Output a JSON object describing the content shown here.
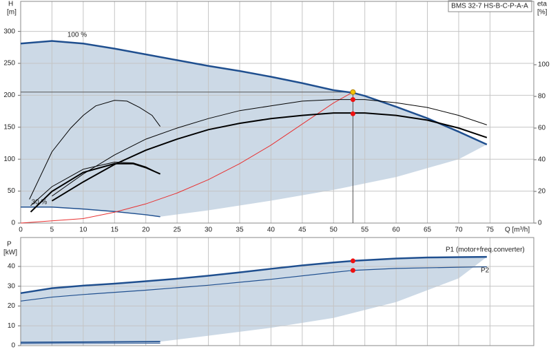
{
  "chart_data": [
    {
      "type": "line",
      "title": "BMS 32-7 HS-B-C-P-A-A",
      "xlabel": "Q [m³/h]",
      "ylabel": "H",
      "yunit": "[m]",
      "y2label": "eta",
      "y2unit": "[%]",
      "xlim": [
        0,
        82
      ],
      "xticks": [
        0,
        5,
        10,
        15,
        20,
        25,
        30,
        35,
        40,
        45,
        50,
        55,
        60,
        65,
        70,
        75
      ],
      "ylim": [
        0,
        347
      ],
      "yticks": [
        0,
        50,
        100,
        150,
        200,
        250,
        300
      ],
      "y2lim": [
        0,
        140
      ],
      "y2ticks": [
        0,
        20,
        40,
        60,
        80,
        100
      ],
      "grid": true,
      "shade": {
        "color": "#ccd9e6",
        "x": [
          74.5,
          70,
          60,
          50,
          40,
          30,
          22.3
        ],
        "values": [
          123,
          100,
          72,
          52,
          35,
          20,
          10
        ]
      },
      "series": [
        {
          "name": "100 %",
          "color": "#1f4f8f",
          "width": 2.5,
          "x": [
            0,
            5,
            10,
            15,
            20,
            25,
            30,
            35,
            40,
            45,
            50,
            53.1,
            55,
            60,
            65,
            70,
            74.5
          ],
          "values": [
            281,
            285,
            281,
            273,
            264,
            255,
            246,
            238,
            229,
            219,
            208,
            204,
            199,
            182,
            164,
            143,
            123
          ]
        },
        {
          "name": "30 %",
          "color": "#1f4f8f",
          "width": 1.5,
          "x": [
            0,
            5,
            10,
            15,
            20,
            22.3
          ],
          "values": [
            25,
            25,
            22,
            18,
            13,
            10
          ]
        },
        {
          "color": "#e83030",
          "width": 1,
          "x": [
            0,
            10,
            15,
            20,
            25,
            30,
            35,
            40,
            45,
            50,
            53.1
          ],
          "values": [
            0,
            7,
            17,
            30,
            47,
            68,
            93,
            122,
            155,
            188,
            205
          ]
        },
        {
          "color": "#000000",
          "width": 2,
          "axis": "y2",
          "x": [
            5,
            10,
            15,
            20,
            25,
            30,
            35,
            40,
            45,
            50,
            55,
            60,
            65,
            70,
            74.5
          ],
          "values": [
            14,
            26,
            37,
            46,
            53,
            59,
            63,
            66,
            68,
            69.5,
            69.5,
            68,
            65,
            60,
            54
          ]
        },
        {
          "color": "#000000",
          "width": 1,
          "axis": "y2",
          "x": [
            5,
            10,
            15,
            20,
            25,
            30,
            35,
            40,
            45,
            50,
            55,
            60,
            65,
            70,
            74.5
          ],
          "values": [
            17,
            31,
            43,
            53,
            60,
            66,
            71,
            74,
            77,
            78,
            78,
            76,
            73,
            68,
            62
          ]
        },
        {
          "color": "#000000",
          "width": 2,
          "axis": "y2",
          "x": [
            1.6,
            5,
            10,
            15,
            18,
            20,
            22.3
          ],
          "values": [
            7,
            20,
            32,
            37.5,
            37.5,
            35,
            31
          ]
        },
        {
          "color": "#000000",
          "width": 1,
          "axis": "y2",
          "x": [
            1.6,
            5,
            10,
            15,
            18,
            20,
            22.3
          ],
          "values": [
            11,
            23,
            34,
            38.5,
            38,
            35.5,
            31
          ]
        },
        {
          "color": "#000000",
          "width": 1,
          "axis": "y2",
          "x": [
            1.4,
            5,
            8,
            10,
            12,
            15,
            17,
            19,
            21,
            22.3
          ],
          "values": [
            15,
            45,
            60,
            68,
            74,
            77.5,
            77,
            73,
            68,
            61
          ]
        }
      ],
      "points": [
        {
          "x": 53.1,
          "y": 205,
          "color": "#f5c400"
        },
        {
          "x": 53.1,
          "y": 78,
          "axis": "y2",
          "color": "#ee1111"
        },
        {
          "x": 53.1,
          "y": 69,
          "axis": "y2",
          "color": "#ee1111"
        }
      ]
    },
    {
      "type": "line",
      "ylabel": "P",
      "yunit": "[kW]",
      "xlim": [
        0,
        82
      ],
      "xticks": [
        0,
        5,
        10,
        15,
        20,
        25,
        30,
        35,
        40,
        45,
        50,
        55,
        60,
        65,
        70,
        75
      ],
      "ylim": [
        0,
        54.6
      ],
      "yticks": [
        0,
        10,
        20,
        30,
        40
      ],
      "grid": true,
      "shade": {
        "color": "#ccd9e6",
        "x": [
          74.5,
          70,
          60,
          50,
          40,
          30,
          22.3
        ],
        "values": [
          44.8,
          34,
          22,
          14,
          9,
          5,
          2
        ]
      },
      "series": [
        {
          "name": "P1 (motor+freq.converter)",
          "color": "#1f4f8f",
          "width": 2.5,
          "x": [
            0,
            5,
            10,
            15,
            20,
            25,
            30,
            35,
            40,
            45,
            50,
            53.1,
            60,
            65,
            70,
            74.5
          ],
          "values": [
            26.5,
            29,
            30.3,
            31.3,
            32.5,
            33.8,
            35.3,
            37,
            38.8,
            40.5,
            42,
            42.8,
            44,
            44.5,
            44.7,
            44.8
          ]
        },
        {
          "color": "#1f4f8f",
          "width": 2,
          "x": [
            0,
            22.3
          ],
          "values": [
            1.6,
            2
          ]
        },
        {
          "name": "P2",
          "color": "#1f4f8f",
          "width": 1.2,
          "x": [
            0,
            5,
            10,
            20,
            30,
            40,
            50,
            53.1,
            60,
            70,
            74.5
          ],
          "values": [
            22.5,
            24.5,
            25.8,
            28,
            30.5,
            33.5,
            37,
            38,
            39,
            39.6,
            39.8
          ]
        },
        {
          "color": "#1f4f8f",
          "width": 1,
          "x": [
            0,
            22.3
          ],
          "values": [
            0.9,
            1.2
          ]
        }
      ],
      "points": [
        {
          "x": 53.1,
          "y": 42.8,
          "color": "#ee1111"
        },
        {
          "x": 53.1,
          "y": 38,
          "color": "#ee1111"
        }
      ]
    }
  ]
}
